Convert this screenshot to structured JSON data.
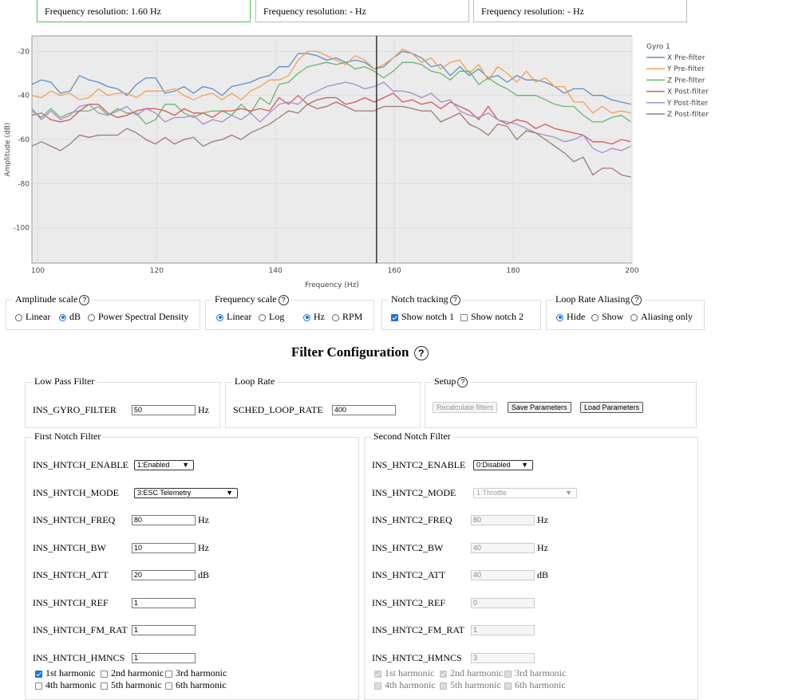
{
  "resolution": {
    "boxes": [
      "Frequency resolution: 1.60 Hz",
      "Frequency resolution: - Hz",
      "Frequency resolution: - Hz"
    ]
  },
  "chart_data": {
    "type": "line",
    "title": "",
    "xlabel": "Frequency (Hz)",
    "ylabel": "Amplitude (dB)",
    "xlim": [
      99,
      200
    ],
    "ylim": [
      -116,
      -13
    ],
    "xticks": [
      100,
      120,
      140,
      160,
      180,
      200
    ],
    "yticks": [
      -20,
      -40,
      -60,
      -80,
      -100
    ],
    "grid": true,
    "legend_title": "Gyro 1",
    "legend_position": "right",
    "cursor_x": 157,
    "x": [
      99,
      100.6,
      102.2,
      103.8,
      105.4,
      107,
      108.6,
      110.2,
      111.8,
      113.4,
      115,
      116.6,
      118.2,
      119.8,
      121.4,
      123,
      124.6,
      126.2,
      127.8,
      129.4,
      131,
      132.6,
      134.2,
      135.8,
      137.4,
      139,
      140.6,
      142.2,
      143.8,
      145.4,
      147,
      148.6,
      150.2,
      151.8,
      153.4,
      155,
      156.6,
      158.2,
      159.8,
      161.4,
      163,
      164.6,
      166.2,
      167.8,
      169.4,
      171,
      172.6,
      174.2,
      175.8,
      177.4,
      179,
      180.6,
      182.2,
      183.8,
      185.4,
      187,
      188.6,
      190.2,
      191.8,
      193.4,
      195,
      196.6,
      198.2,
      199.8
    ],
    "series": [
      {
        "name": "X Pre-filter",
        "color": "#5b8fc7",
        "values": [
          -35,
          -33,
          -34,
          -39,
          -38,
          -31,
          -33,
          -34,
          -36,
          -37,
          -40,
          -35,
          -32,
          -32,
          -39,
          -38,
          -36,
          -39,
          -36,
          -37,
          -40,
          -36,
          -35,
          -34,
          -32,
          -31,
          -27,
          -27,
          -21,
          -21,
          -22,
          -24,
          -23,
          -25,
          -24,
          -25,
          -28,
          -27,
          -23,
          -20,
          -21,
          -23,
          -27,
          -26,
          -31,
          -27,
          -31,
          -28,
          -32,
          -31,
          -34,
          -31,
          -33,
          -33,
          -34,
          -36,
          -39,
          -37,
          -37,
          -40,
          -40,
          -42,
          -43,
          -44
        ]
      },
      {
        "name": "Y Pre-filter",
        "color": "#f0a050",
        "values": [
          -40,
          -41,
          -38,
          -40,
          -39,
          -42,
          -41,
          -37,
          -40,
          -39,
          -39,
          -41,
          -38,
          -38,
          -38,
          -37,
          -40,
          -42,
          -40,
          -39,
          -42,
          -39,
          -42,
          -38,
          -36,
          -33,
          -33,
          -31,
          -24,
          -20,
          -20,
          -22,
          -24,
          -26,
          -22,
          -24,
          -28,
          -26,
          -23,
          -19,
          -21,
          -25,
          -23,
          -28,
          -25,
          -24,
          -30,
          -26,
          -33,
          -27,
          -30,
          -34,
          -29,
          -34,
          -32,
          -36,
          -36,
          -43,
          -43,
          -48,
          -45,
          -48,
          -47,
          -48
        ]
      },
      {
        "name": "Z Pre-filter",
        "color": "#6ab46a",
        "values": [
          -47,
          -50,
          -46,
          -50,
          -48,
          -47,
          -47,
          -45,
          -49,
          -46,
          -48,
          -48,
          -53,
          -51,
          -44,
          -44,
          -48,
          -50,
          -48,
          -47,
          -47,
          -49,
          -44,
          -48,
          -41,
          -44,
          -35,
          -34,
          -30,
          -27,
          -26,
          -25,
          -26,
          -25,
          -28,
          -27,
          -29,
          -32,
          -29,
          -25,
          -25,
          -26,
          -29,
          -30,
          -33,
          -29,
          -29,
          -35,
          -32,
          -35,
          -37,
          -40,
          -40,
          -40,
          -42,
          -44,
          -45,
          -45,
          -49,
          -52,
          -52,
          -50,
          -49,
          -52
        ]
      },
      {
        "name": "X Post-filter",
        "color": "#d45a5a",
        "values": [
          -49,
          -48,
          -51,
          -52,
          -51,
          -47,
          -44,
          -44,
          -48,
          -50,
          -49,
          -47,
          -46,
          -46,
          -47,
          -49,
          -46,
          -48,
          -48,
          -50,
          -47,
          -47,
          -46,
          -47,
          -46,
          -47,
          -41,
          -44,
          -40,
          -44,
          -42,
          -41,
          -41,
          -44,
          -43,
          -41,
          -43,
          -41,
          -39,
          -43,
          -42,
          -44,
          -43,
          -46,
          -43,
          -45,
          -47,
          -51,
          -45,
          -51,
          -53,
          -51,
          -52,
          -55,
          -53,
          -55,
          -56,
          -57,
          -58,
          -61,
          -61,
          -62,
          -60,
          -61
        ]
      },
      {
        "name": "Y Post-filter",
        "color": "#a98bd0",
        "values": [
          -46,
          -51,
          -47,
          -51,
          -49,
          -45,
          -44,
          -48,
          -49,
          -47,
          -45,
          -49,
          -46,
          -48,
          -52,
          -50,
          -50,
          -49,
          -53,
          -51,
          -52,
          -49,
          -51,
          -48,
          -52,
          -48,
          -44,
          -43,
          -44,
          -40,
          -38,
          -36,
          -35,
          -34,
          -35,
          -37,
          -36,
          -34,
          -38,
          -38,
          -39,
          -41,
          -39,
          -43,
          -42,
          -47,
          -49,
          -50,
          -48,
          -51,
          -52,
          -53,
          -55,
          -57,
          -58,
          -59,
          -61,
          -60,
          -58,
          -64,
          -66,
          -64,
          -65,
          -63
        ]
      },
      {
        "name": "Z Post-filter",
        "color": "#9e7a6e",
        "values": [
          -63,
          -61,
          -63,
          -65,
          -62,
          -58,
          -59,
          -58,
          -58,
          -58,
          -55,
          -57,
          -60,
          -62,
          -59,
          -62,
          -60,
          -59,
          -63,
          -61,
          -60,
          -58,
          -60,
          -57,
          -55,
          -53,
          -50,
          -47,
          -48,
          -44,
          -46,
          -45,
          -43,
          -45,
          -47,
          -47,
          -47,
          -45,
          -45,
          -45,
          -46,
          -47,
          -47,
          -52,
          -50,
          -48,
          -53,
          -55,
          -58,
          -53,
          -54,
          -60,
          -56,
          -57,
          -60,
          -63,
          -66,
          -70,
          -68,
          -76,
          -73,
          -73,
          -76,
          -77
        ]
      }
    ]
  },
  "scales": {
    "amplitude": {
      "title": "Amplitude scale",
      "options": [
        "Linear",
        "dB",
        "Power Spectral Density"
      ]
    },
    "frequency": {
      "title": "Frequency scale",
      "options": [
        "Linear",
        "Log",
        "Hz",
        "RPM"
      ]
    },
    "notch": {
      "title": "Notch tracking",
      "options": [
        "Show notch 1",
        "Show notch 2"
      ]
    },
    "aliasing": {
      "title": "Loop Rate Aliasing",
      "options": [
        "Hide",
        "Show",
        "Aliasing only"
      ]
    }
  },
  "filter_config": {
    "heading": "Filter Configuration",
    "lowpass": {
      "title": "Low Pass Filter",
      "param": "INS_GYRO_FILTER",
      "value": "50",
      "unit": "Hz"
    },
    "looprate": {
      "title": "Loop Rate",
      "param": "SCHED_LOOP_RATE",
      "value": "400"
    },
    "setup": {
      "title": "Setup",
      "recalc": "Recalculate filters",
      "save": "Save Parameters",
      "load": "Load Parameters"
    },
    "notch1": {
      "title": "First Notch Filter",
      "enable": {
        "param": "INS_HNTCH_ENABLE",
        "value": "1:Enabled"
      },
      "mode": {
        "param": "INS_HNTCH_MODE",
        "value": "3:ESC Telemetry"
      },
      "freq": {
        "param": "INS_HNTCH_FREQ",
        "value": "80",
        "unit": "Hz"
      },
      "bw": {
        "param": "INS_HNTCH_BW",
        "value": "10",
        "unit": "Hz"
      },
      "att": {
        "param": "INS_HNTCH_ATT",
        "value": "20",
        "unit": "dB"
      },
      "ref": {
        "param": "INS_HNTCH_REF",
        "value": "1"
      },
      "fmrat": {
        "param": "INS_HNTCH_FM_RAT",
        "value": "1"
      },
      "hmncs": {
        "param": "INS_HNTCH_HMNCS",
        "value": "1"
      },
      "harmonics": [
        "1st harmonic",
        "2nd harmonic",
        "3rd harmonic",
        "4th harmonic",
        "5th harmonic",
        "6th harmonic"
      ]
    },
    "notch2": {
      "title": "Second Notch Filter",
      "enable": {
        "param": "INS_HNTC2_ENABLE",
        "value": "0:Disabled"
      },
      "mode": {
        "param": "INS_HNTC2_MODE",
        "value": "1:Throttle"
      },
      "freq": {
        "param": "INS_HNTC2_FREQ",
        "value": "80",
        "unit": "Hz"
      },
      "bw": {
        "param": "INS_HNTC2_BW",
        "value": "40",
        "unit": "Hz"
      },
      "att": {
        "param": "INS_HNTC2_ATT",
        "value": "40",
        "unit": "dB"
      },
      "ref": {
        "param": "INS_HNTC2_REF",
        "value": "0"
      },
      "fmrat": {
        "param": "INS_HNTC2_FM_RAT",
        "value": "1"
      },
      "hmncs": {
        "param": "INS_HNTC2_HMNCS",
        "value": "3"
      },
      "harmonics": [
        "1st harmonic",
        "2nd harmonic",
        "3rd harmonic",
        "4th harmonic",
        "5th harmonic",
        "6th harmonic"
      ]
    }
  }
}
